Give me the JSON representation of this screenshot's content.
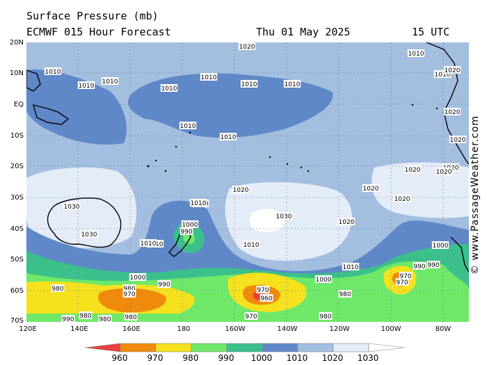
{
  "header": {
    "title": "Surface Pressure (mb)",
    "model": "ECMWF 015 Hour Forecast",
    "date": "Thu 01 May 2025",
    "time": "15 UTC"
  },
  "lat_labels": [
    "20N",
    "10N",
    "EQ",
    "10S",
    "20S",
    "30S",
    "40S",
    "50S",
    "60S",
    "70S"
  ],
  "lon_labels": [
    "120E",
    "140E",
    "160E",
    "180",
    "160W",
    "140W",
    "120W",
    "100W",
    "80W"
  ],
  "copyright": "© www.PassageWeather.com",
  "legend": {
    "levels": [
      "960",
      "970",
      "980",
      "990",
      "1000",
      "1010",
      "1020",
      "1030"
    ],
    "colors": [
      "#e8403c",
      "#f08a0c",
      "#f5e11d",
      "#6fe86a",
      "#3bbf8b",
      "#5f88c8",
      "#a4bee0",
      "#e4ecf8",
      "#ffffff"
    ]
  },
  "isobar_labels": [
    {
      "text": "1020"
    },
    {
      "text": "1010"
    },
    {
      "text": "1010"
    },
    {
      "text": "1010"
    },
    {
      "text": "1010"
    },
    {
      "text": "1010"
    },
    {
      "text": "1010"
    },
    {
      "text": "1010"
    },
    {
      "text": "1010"
    },
    {
      "text": "1010"
    },
    {
      "text": "1010"
    },
    {
      "text": "1010"
    },
    {
      "text": "1020"
    },
    {
      "text": "1020"
    },
    {
      "text": "1020"
    },
    {
      "text": "1020"
    },
    {
      "text": "1020"
    },
    {
      "text": "1030"
    },
    {
      "text": "1030"
    },
    {
      "text": "1030"
    },
    {
      "text": "1020"
    },
    {
      "text": "1010"
    },
    {
      "text": "1000"
    },
    {
      "text": "990"
    },
    {
      "text": "1010"
    },
    {
      "text": "1000"
    },
    {
      "text": "1000"
    },
    {
      "text": "1000"
    },
    {
      "text": "990"
    },
    {
      "text": "990"
    },
    {
      "text": "980"
    },
    {
      "text": "980"
    },
    {
      "text": "970"
    },
    {
      "text": "970"
    },
    {
      "text": "960"
    },
    {
      "text": "980"
    },
    {
      "text": "970"
    },
    {
      "text": "970"
    },
    {
      "text": "980"
    },
    {
      "text": "990"
    },
    {
      "text": "980"
    },
    {
      "text": "970"
    },
    {
      "text": "980"
    },
    {
      "text": "1020"
    },
    {
      "text": "1020"
    },
    {
      "text": "1010"
    },
    {
      "text": "1010"
    },
    {
      "text": "1000"
    },
    {
      "text": "1010"
    },
    {
      "text": "1020"
    },
    {
      "text": "1020"
    },
    {
      "text": "1010"
    },
    {
      "text": "990"
    },
    {
      "text": "980"
    }
  ]
}
